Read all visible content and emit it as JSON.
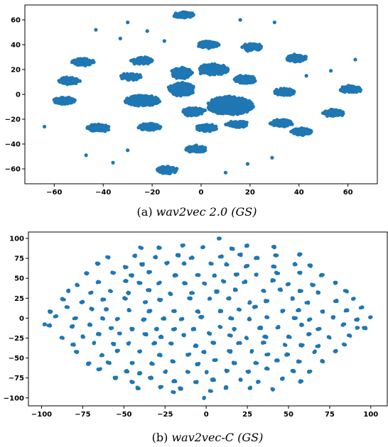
{
  "chart_data": [
    {
      "type": "scatter",
      "caption_label": "(a)",
      "caption_italic": "wav2vec 2.0 (GS)",
      "title": "",
      "xlabel": "",
      "ylabel": "",
      "xlim": [
        -72,
        72
      ],
      "ylim": [
        -72,
        72
      ],
      "xticks": [
        -60,
        -40,
        -20,
        0,
        20,
        40,
        60
      ],
      "yticks": [
        60,
        40,
        20,
        0,
        -20,
        -40,
        -60
      ],
      "xtick_labels": [
        "−60",
        "−40",
        "−20",
        "0",
        "20",
        "40",
        "60"
      ],
      "ytick_labels": [
        "60",
        "40",
        "20",
        "0",
        "−20",
        "−40",
        "−60"
      ],
      "grid": false,
      "point_color": "#1f77b4",
      "clusters": [
        {
          "x": -7,
          "y": 64,
          "sx": 4,
          "sy": 2,
          "n": 140
        },
        {
          "x": 3,
          "y": 40,
          "sx": 4,
          "sy": 2.5,
          "n": 140
        },
        {
          "x": 21,
          "y": 38,
          "sx": 4,
          "sy": 2.5,
          "n": 120
        },
        {
          "x": 39,
          "y": 29,
          "sx": 4,
          "sy": 2.5,
          "n": 120
        },
        {
          "x": -48,
          "y": 26,
          "sx": 4,
          "sy": 2.5,
          "n": 140
        },
        {
          "x": -24,
          "y": 27,
          "sx": 4,
          "sy": 2.5,
          "n": 120
        },
        {
          "x": -29,
          "y": 14,
          "sx": 4,
          "sy": 2.5,
          "n": 120
        },
        {
          "x": -54,
          "y": 11,
          "sx": 4,
          "sy": 2.5,
          "n": 130
        },
        {
          "x": -8,
          "y": 17,
          "sx": 4,
          "sy": 4,
          "n": 160
        },
        {
          "x": 5,
          "y": 20,
          "sx": 6,
          "sy": 4,
          "n": 200
        },
        {
          "x": 18,
          "y": 12,
          "sx": 4,
          "sy": 3,
          "n": 130
        },
        {
          "x": -8,
          "y": 4,
          "sx": 5,
          "sy": 5,
          "n": 220
        },
        {
          "x": -56,
          "y": -5,
          "sx": 4,
          "sy": 2.5,
          "n": 140
        },
        {
          "x": -24,
          "y": -5,
          "sx": 7,
          "sy": 4,
          "n": 280
        },
        {
          "x": 12,
          "y": -9,
          "sx": 9,
          "sy": 7,
          "n": 600
        },
        {
          "x": -3,
          "y": -14,
          "sx": 4,
          "sy": 3,
          "n": 140
        },
        {
          "x": 34,
          "y": 2,
          "sx": 4,
          "sy": 2.5,
          "n": 120
        },
        {
          "x": 61,
          "y": 4,
          "sx": 4,
          "sy": 2.5,
          "n": 130
        },
        {
          "x": 54,
          "y": -15,
          "sx": 4,
          "sy": 2.5,
          "n": 120
        },
        {
          "x": -42,
          "y": -27,
          "sx": 4,
          "sy": 2.5,
          "n": 140
        },
        {
          "x": -21,
          "y": -26,
          "sx": 4,
          "sy": 2.5,
          "n": 130
        },
        {
          "x": 2,
          "y": -27,
          "sx": 4,
          "sy": 2.5,
          "n": 130
        },
        {
          "x": 15,
          "y": -24,
          "sx": 4,
          "sy": 2.5,
          "n": 120
        },
        {
          "x": 33,
          "y": -23,
          "sx": 4,
          "sy": 2.5,
          "n": 130
        },
        {
          "x": 41,
          "y": -30,
          "sx": 4,
          "sy": 2.5,
          "n": 140
        },
        {
          "x": -2,
          "y": -44,
          "sx": 4,
          "sy": 2.5,
          "n": 140
        },
        {
          "x": -14,
          "y": -61,
          "sx": 4,
          "sy": 2.5,
          "n": 140
        }
      ],
      "outliers": [
        {
          "x": -43,
          "y": 52
        },
        {
          "x": -30,
          "y": 58
        },
        {
          "x": -22,
          "y": 51
        },
        {
          "x": -33,
          "y": 45
        },
        {
          "x": -15,
          "y": 43
        },
        {
          "x": 16,
          "y": 60
        },
        {
          "x": 30,
          "y": 58
        },
        {
          "x": 43,
          "y": 15
        },
        {
          "x": 53,
          "y": 19
        },
        {
          "x": 63,
          "y": 28
        },
        {
          "x": -64,
          "y": -26
        },
        {
          "x": -47,
          "y": -49
        },
        {
          "x": -36,
          "y": -55
        },
        {
          "x": -30,
          "y": -45
        },
        {
          "x": 10,
          "y": -63
        },
        {
          "x": 19,
          "y": -56
        },
        {
          "x": 29,
          "y": -51
        }
      ]
    },
    {
      "type": "scatter",
      "caption_label": "(b)",
      "caption_italic": "wav2vec-C (GS)",
      "title": "",
      "xlabel": "",
      "ylabel": "",
      "xlim": [
        -108,
        110
      ],
      "ylim": [
        -110,
        108
      ],
      "xticks": [
        -100,
        -75,
        -50,
        -25,
        0,
        25,
        50,
        75,
        100
      ],
      "yticks": [
        100,
        75,
        50,
        25,
        0,
        -25,
        -50,
        -75,
        -100
      ],
      "xtick_labels": [
        "−100",
        "−75",
        "−50",
        "−25",
        "0",
        "25",
        "50",
        "75",
        "100"
      ],
      "ytick_labels": [
        "100",
        "75",
        "50",
        "25",
        "0",
        "−25",
        "−50",
        "−75",
        "−100"
      ],
      "grid": false,
      "point_color": "#1f77b4",
      "lattice": {
        "spacing": 12.8,
        "radius_x": 99,
        "radius_y": 97,
        "jitter": 3,
        "points_per_blob": 6,
        "blob_spread": 0.8
      },
      "extra_points": [
        {
          "x": -98,
          "y": -8
        },
        {
          "x": 100,
          "y": 1
        },
        {
          "x": 92,
          "y": -12
        },
        {
          "x": 8,
          "y": 100
        },
        {
          "x": -1,
          "y": -100
        },
        {
          "x": -20,
          "y": -93
        }
      ]
    }
  ]
}
